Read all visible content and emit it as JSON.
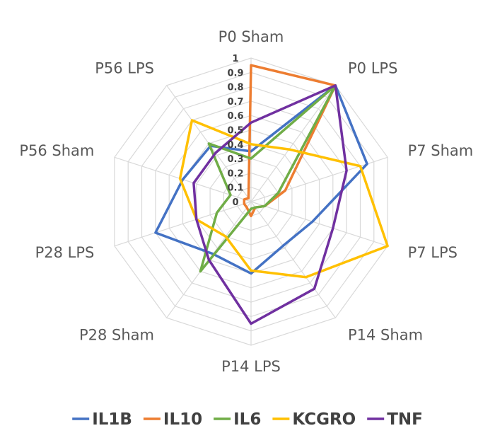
{
  "chart_data": {
    "type": "radar",
    "categories": [
      "P0 Sham",
      "P0 LPS",
      "P7 Sham",
      "P7 LPS",
      "P14 Sham",
      "P14 LPS",
      "P28 Sham",
      "P28 LPS",
      "P56 Sham",
      "P56 LPS"
    ],
    "axis_ticks": [
      "0",
      "0.1",
      "0.2",
      "0.3",
      "0.4",
      "0.5",
      "0.6",
      "0.7",
      "0.8",
      "0.9",
      "1"
    ],
    "rlim": [
      0,
      1
    ],
    "grid": true,
    "legend_position": "bottom",
    "series": [
      {
        "name": "IL1B",
        "color": "#4472C4",
        "values": [
          0.35,
          1.0,
          0.85,
          0.45,
          0.38,
          0.5,
          0.45,
          0.7,
          0.5,
          0.48
        ]
      },
      {
        "name": "IL10",
        "color": "#ED7D31",
        "values": [
          0.95,
          1.0,
          0.25,
          0.1,
          0.05,
          0.1,
          0.05,
          0.05,
          0.05,
          0.03
        ]
      },
      {
        "name": "IL6",
        "color": "#70AD47",
        "values": [
          0.3,
          1.0,
          0.2,
          0.1,
          0.05,
          0.05,
          0.6,
          0.25,
          0.15,
          0.5
        ]
      },
      {
        "name": "KCGRO",
        "color": "#FFC000",
        "values": [
          0.4,
          0.45,
          0.8,
          1.0,
          0.65,
          0.48,
          0.3,
          0.4,
          0.52,
          0.7
        ]
      },
      {
        "name": "TNF",
        "color": "#7030A0",
        "values": [
          0.55,
          1.0,
          0.7,
          0.6,
          0.75,
          0.85,
          0.5,
          0.4,
          0.42,
          0.42
        ]
      }
    ]
  }
}
